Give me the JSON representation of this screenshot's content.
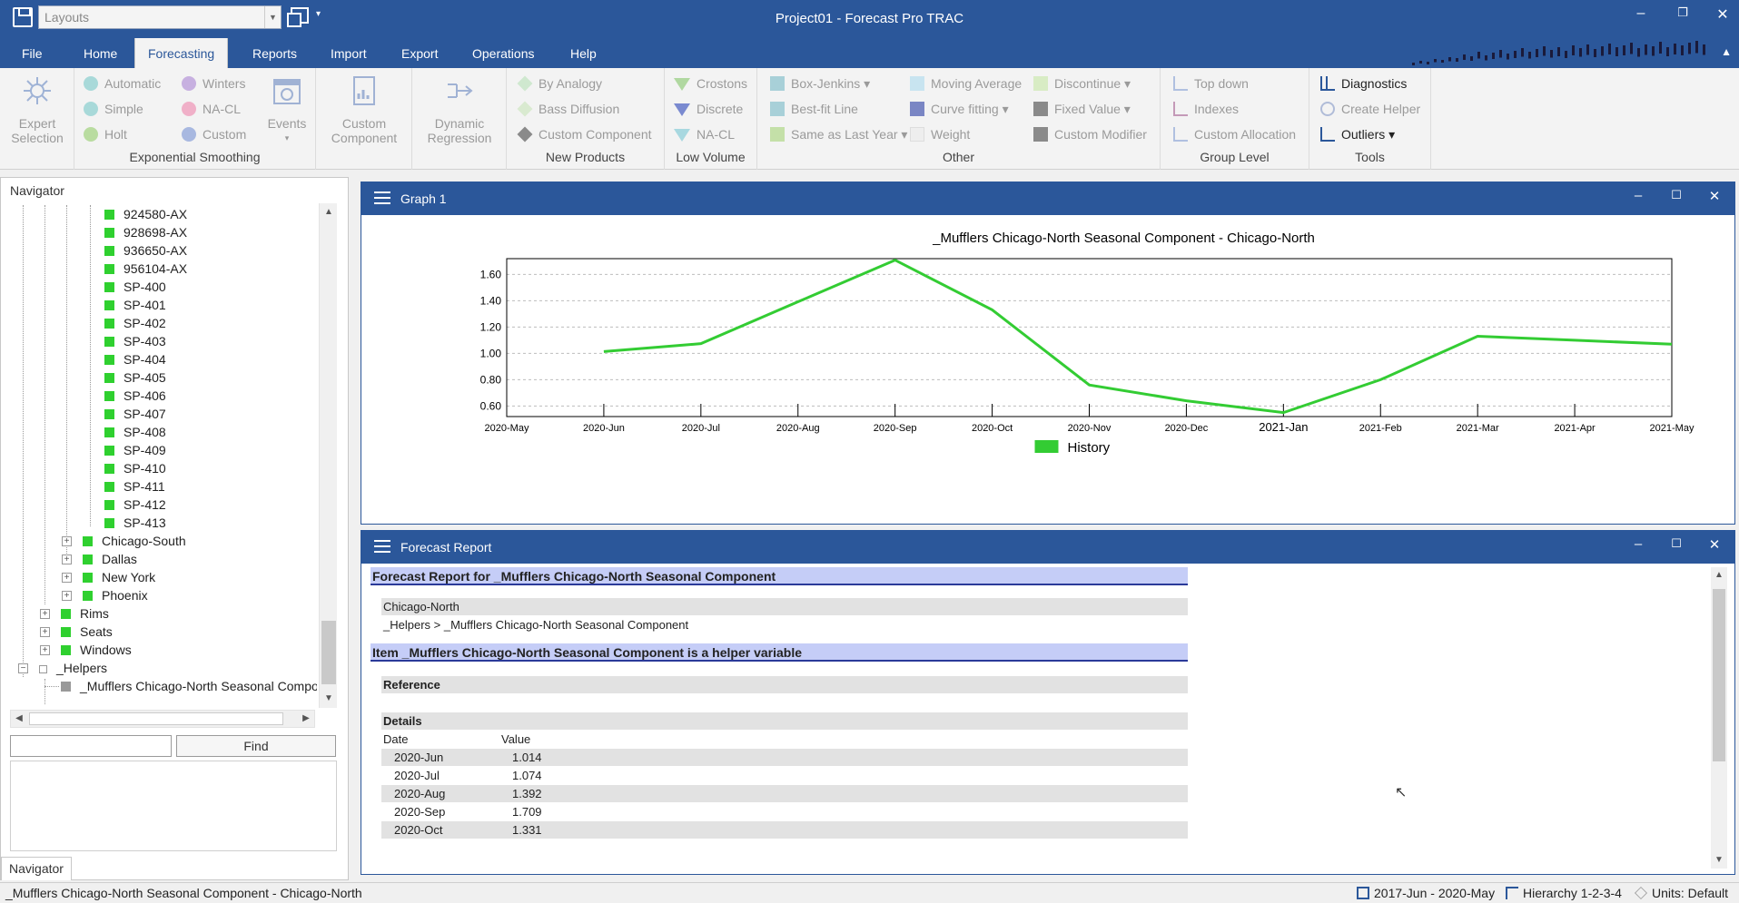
{
  "window": {
    "title": "Project01 - Forecast Pro TRAC",
    "layouts_placeholder": "Layouts"
  },
  "ribbon_tabs": [
    "File",
    "Home",
    "Forecasting",
    "Reports",
    "Import",
    "Export",
    "Operations",
    "Help"
  ],
  "active_tab": "Forecasting",
  "ribbon": {
    "expert_selection": [
      "Expert",
      "Selection"
    ],
    "exp_smoothing": {
      "col1": [
        "Automatic",
        "Simple",
        "Holt"
      ],
      "col2": [
        "Winters",
        "NA-CL",
        "Custom"
      ],
      "events": "Events",
      "label": "Exponential Smoothing"
    },
    "custom_component": [
      "Custom",
      "Component"
    ],
    "dynamic_regression": [
      "Dynamic",
      "Regression"
    ],
    "new_products": {
      "items": [
        "By Analogy",
        "Bass Diffusion",
        "Custom Component"
      ],
      "label": "New Products"
    },
    "low_volume": {
      "items": [
        "Crostons",
        "Discrete",
        "NA-CL"
      ],
      "label": "Low Volume"
    },
    "other": {
      "col1": [
        "Box-Jenkins",
        "Best-fit Line",
        "Same as Last Year"
      ],
      "col2": [
        "Moving Average",
        "Curve fitting",
        "Weight"
      ],
      "col3": [
        "Discontinue",
        "Fixed Value",
        "Custom Modifier"
      ],
      "label": "Other"
    },
    "group_level": {
      "items": [
        "Top down",
        "Indexes",
        "Custom Allocation"
      ],
      "label": "Group Level"
    },
    "tools": {
      "items": [
        "Diagnostics",
        "Create Helper",
        "Outliers"
      ],
      "label": "Tools"
    }
  },
  "navigator": {
    "title": "Navigator",
    "items": {
      "i0": "924580-AX",
      "i1": "928698-AX",
      "i2": "936650-AX",
      "i3": "956104-AX",
      "i4": "SP-400",
      "i5": "SP-401",
      "i6": "SP-402",
      "i7": "SP-403",
      "i8": "SP-404",
      "i9": "SP-405",
      "i10": "SP-406",
      "i11": "SP-407",
      "i12": "SP-408",
      "i13": "SP-409",
      "i14": "SP-410",
      "i15": "SP-411",
      "i16": "SP-412",
      "i17": "SP-413",
      "g0": "Chicago-South",
      "g1": "Dallas",
      "g2": "New York",
      "g3": "Phoenix",
      "p0": "Rims",
      "p1": "Seats",
      "p2": "Windows",
      "h0": "_Helpers",
      "h1": "_Mufflers Chicago-North Seasonal Component"
    },
    "find_button": "Find",
    "tab_label": "Navigator"
  },
  "graph_panel": {
    "title": "Graph 1"
  },
  "chart_data": {
    "type": "line",
    "title": "_Mufflers Chicago-North Seasonal Component - Chicago-North",
    "x": [
      "2020-May",
      "2020-Jun",
      "2020-Jul",
      "2020-Aug",
      "2020-Sep",
      "2020-Oct",
      "2020-Nov",
      "2020-Dec",
      "2021-Jan",
      "2021-Feb",
      "2021-Mar",
      "2021-Apr",
      "2021-May"
    ],
    "y_ticks": [
      "1.60",
      "1.40",
      "1.20",
      "1.00",
      "0.80",
      "0.60"
    ],
    "series": [
      {
        "name": "History",
        "color": "#33cc33",
        "values": [
          null,
          1.014,
          1.074,
          1.392,
          1.709,
          1.331,
          0.76,
          0.64,
          0.55,
          0.8,
          1.13,
          1.1,
          1.07
        ]
      }
    ],
    "ylim": [
      0.52,
      1.72
    ],
    "grid": true,
    "legend": "bottom-center"
  },
  "report_panel": {
    "title": "Forecast Report",
    "header1": "Forecast Report for _Mufflers Chicago-North Seasonal Component",
    "location": "Chicago-North",
    "path": "_Helpers > _Mufflers Chicago-North Seasonal Component",
    "header2": "Item _Mufflers Chicago-North Seasonal Component is a helper variable",
    "reference": "Reference",
    "details": "Details",
    "col_date": "Date",
    "col_value": "Value",
    "rows": [
      {
        "date": "2020-Jun",
        "value": "1.014"
      },
      {
        "date": "2020-Jul",
        "value": "1.074"
      },
      {
        "date": "2020-Aug",
        "value": "1.392"
      },
      {
        "date": "2020-Sep",
        "value": "1.709"
      },
      {
        "date": "2020-Oct",
        "value": "1.331"
      }
    ]
  },
  "statusbar": {
    "left": "_Mufflers Chicago-North Seasonal Component - Chicago-North",
    "period": "2017-Jun - 2020-May",
    "hierarchy": "Hierarchy 1-2-3-4",
    "units": "Units: Default"
  },
  "colors": {
    "brand": "#2b579a",
    "leaf_green": "#2fd02f",
    "header_band": "#c5cdf7"
  }
}
